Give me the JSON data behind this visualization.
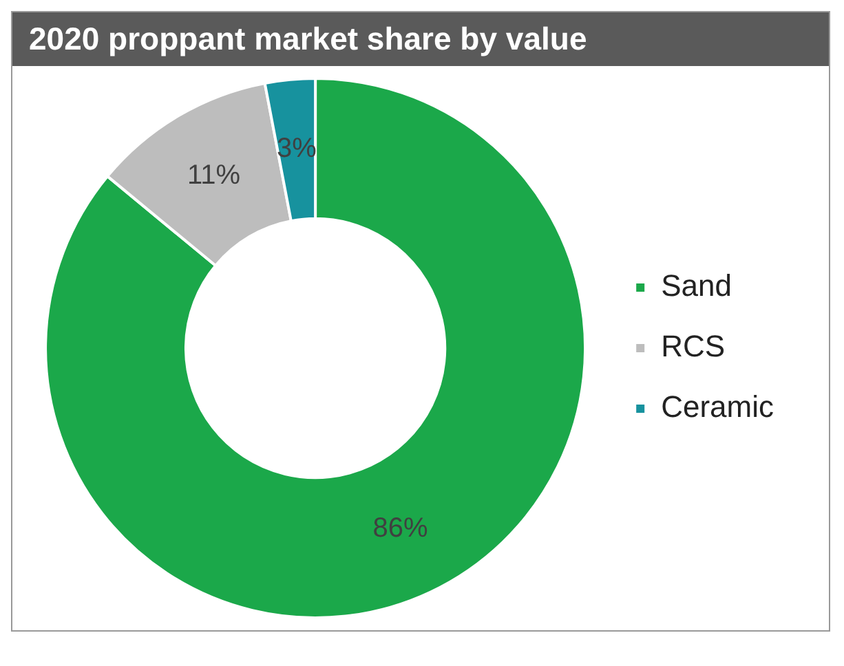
{
  "chart_data": {
    "type": "donut",
    "title": "2020 proppant market share by value",
    "categories": [
      "Sand",
      "RCS",
      "Ceramic"
    ],
    "values": [
      86,
      11,
      3
    ],
    "colors": [
      "#1ba84a",
      "#bdbdbd",
      "#17929e"
    ],
    "value_labels": [
      "86%",
      "11%",
      "3%"
    ],
    "legend": "right"
  }
}
